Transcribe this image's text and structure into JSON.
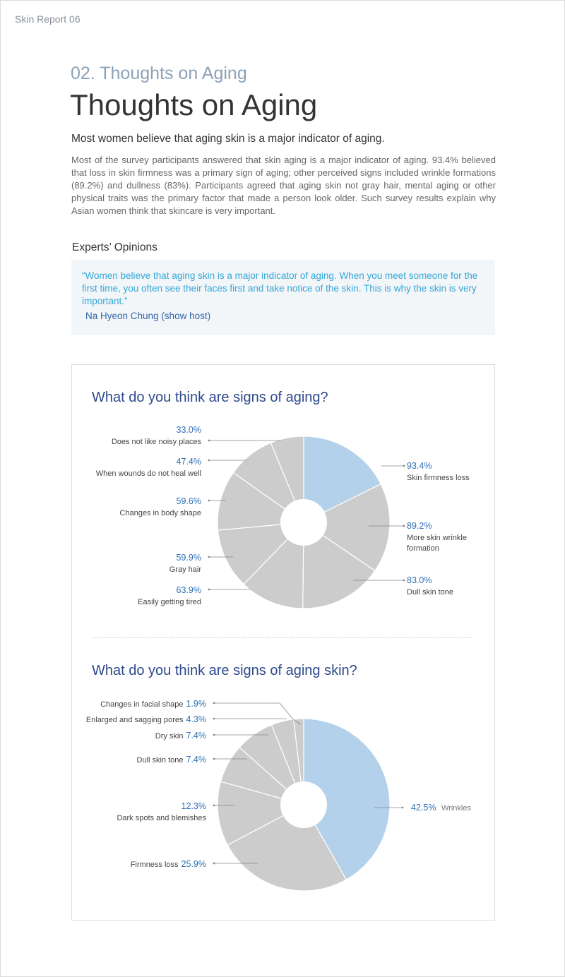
{
  "report_label": "Skin Report 06",
  "section_number": "02. Thoughts on Aging",
  "page_title": "Thoughts on Aging",
  "lead": "Most women believe that aging skin is a major indicator of aging.",
  "body": "Most of the survey participants answered that skin aging is a major indicator of aging. 93.4% believed that loss in skin firmness was a primary sign of aging; other perceived signs included wrinkle formations (89.2%) and dullness (83%). Participants agreed that aging skin not gray hair, mental aging or other physical traits was the primary factor that made a person look older. Such survey results explain why Asian women think that skincare is very important.",
  "experts": {
    "heading": "Experts’ Opinions",
    "quote": "“Women believe that aging skin is a major indicator of aging. When you meet someone for the first time, you often see their faces first and take notice of the skin. This is why the skin is very important.”",
    "author": "Na Hyeon Chung (show host)"
  },
  "colors": {
    "highlight": "#b3d1ea",
    "slice": "#cccccc",
    "title": "#2e4a8c",
    "percent": "#2f6fb4"
  },
  "chart_data": [
    {
      "type": "pie",
      "title": "What do you think are signs of aging?",
      "slices": [
        {
          "label": "Skin firmness loss",
          "value": 93.4,
          "display": "93.4%",
          "highlight": true
        },
        {
          "label": "More skin wrinkle formation",
          "value": 89.2,
          "display": "89.2%",
          "highlight": false
        },
        {
          "label": "Dull skin tone",
          "value": 83.0,
          "display": "83.0%",
          "highlight": false
        },
        {
          "label": "Easily getting tired",
          "value": 63.9,
          "display": "63.9%",
          "highlight": false
        },
        {
          "label": "Gray hair",
          "value": 59.9,
          "display": "59.9%",
          "highlight": false
        },
        {
          "label": "Changes in body shape",
          "value": 59.6,
          "display": "59.6%",
          "highlight": false
        },
        {
          "label": "When wounds do not heal well",
          "value": 47.4,
          "display": "47.4%",
          "highlight": false
        },
        {
          "label": "Does not like noisy places",
          "value": 33.0,
          "display": "33.0%",
          "highlight": false
        }
      ]
    },
    {
      "type": "pie",
      "title": "What do you think are signs of aging skin?",
      "slices": [
        {
          "label": "Wrinkles",
          "value": 42.5,
          "display": "42.5%",
          "highlight": true
        },
        {
          "label": "Firmness loss",
          "value": 25.9,
          "display": "25.9%",
          "highlight": false
        },
        {
          "label": "Dark spots and blemishes",
          "value": 12.3,
          "display": "12.3%",
          "highlight": false
        },
        {
          "label": "Dull skin tone",
          "value": 7.4,
          "display": "7.4%",
          "highlight": false
        },
        {
          "label": "Dry skin",
          "value": 7.4,
          "display": "7.4%",
          "highlight": false
        },
        {
          "label": "Enlarged and sagging pores",
          "value": 4.3,
          "display": "4.3%",
          "highlight": false
        },
        {
          "label": "Changes in facial shape",
          "value": 1.9,
          "display": "1.9%",
          "highlight": false
        }
      ]
    }
  ]
}
